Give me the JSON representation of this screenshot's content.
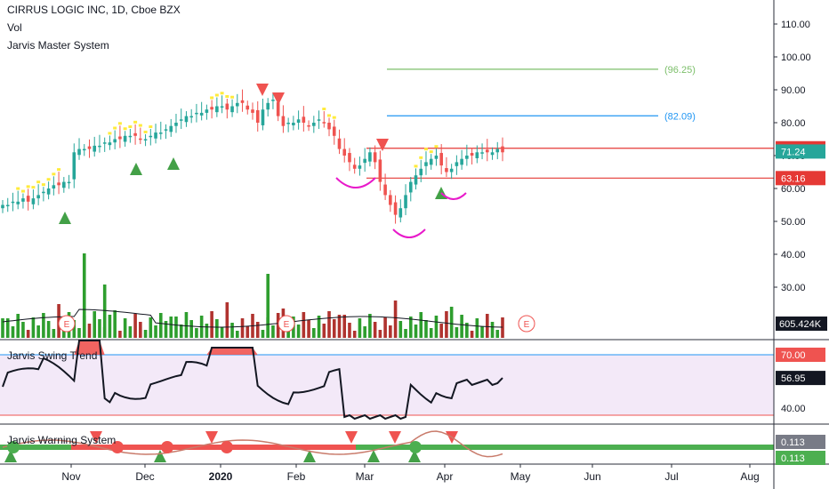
{
  "header": {
    "symbol_title": "CIRRUS LOGIC INC, 1D, Cboe BZX",
    "indicator_1": "Vol",
    "indicator_2": "Jarvis Master System"
  },
  "panes": {
    "swing_title": "Jarvis Swing Trend",
    "warning_title": "Jarvis Warning System"
  },
  "colors": {
    "up": "#26a69a",
    "down": "#ef5350",
    "bar_up": "#2e9e2e",
    "bar_down": "#b0332f",
    "green_line": "#7cbf6a",
    "blue_line": "#2196f3",
    "red_line": "#e53935",
    "magenta": "#e81aca",
    "warn_green": "#4caf50",
    "warn_red": "#ef5350"
  },
  "chart_data": [
    {
      "type": "candlestick",
      "title": "CIRRUS LOGIC INC, 1D, Cboe BZX",
      "x_tick_labels": [
        "Nov",
        "Dec",
        "2020",
        "Feb",
        "Mar",
        "Apr",
        "May",
        "Jun",
        "Jul",
        "Aug"
      ],
      "y_tick_labels": [
        "110.00",
        "100.00",
        "90.00",
        "80.00",
        "70.00",
        "60.00",
        "50.00",
        "40.00",
        "30.00"
      ],
      "ylim": [
        24,
        115
      ],
      "close_series": [
        55,
        55,
        56,
        56,
        57,
        56,
        57,
        58,
        59,
        60,
        61,
        61,
        62,
        62,
        71,
        72,
        72,
        72,
        73,
        73,
        74,
        74,
        75,
        75,
        76,
        76,
        76,
        75,
        75,
        76,
        77,
        77,
        78,
        79,
        80,
        81,
        82,
        82,
        83,
        83,
        84,
        84,
        85,
        85,
        84,
        85,
        86,
        86,
        84,
        83,
        80,
        84,
        86,
        87,
        82,
        79,
        80,
        80,
        81,
        80,
        79,
        80,
        81,
        80,
        78,
        76,
        72,
        70,
        68,
        66,
        67,
        69,
        71,
        68,
        62,
        58,
        55,
        52,
        54,
        58,
        62,
        64,
        66,
        68,
        69,
        70,
        67,
        65,
        66,
        68,
        69,
        70,
        70,
        71,
        71,
        71,
        71,
        72,
        71
      ],
      "levels": [
        {
          "label": "(96.25)",
          "value": 96.25,
          "color": "#7cbf6a"
        },
        {
          "label": "(82.09)",
          "value": 82.09,
          "color": "#2196f3"
        },
        {
          "label": "72.23",
          "value": 72.23,
          "color": "#e53935"
        },
        {
          "label": "63.16",
          "value": 63.16,
          "color": "#e53935"
        }
      ],
      "last_price": "71.24",
      "volume_label": "605.424K"
    },
    {
      "type": "line",
      "title": "Jarvis Swing Trend",
      "y_tick_labels": [
        "70.00",
        "40.00"
      ],
      "ylim": [
        32,
        78
      ],
      "band": [
        36,
        70
      ],
      "value_label": "56.95"
    },
    {
      "type": "line",
      "title": "Jarvis Warning System",
      "value_labels": [
        "0.113",
        "0.113"
      ]
    }
  ]
}
